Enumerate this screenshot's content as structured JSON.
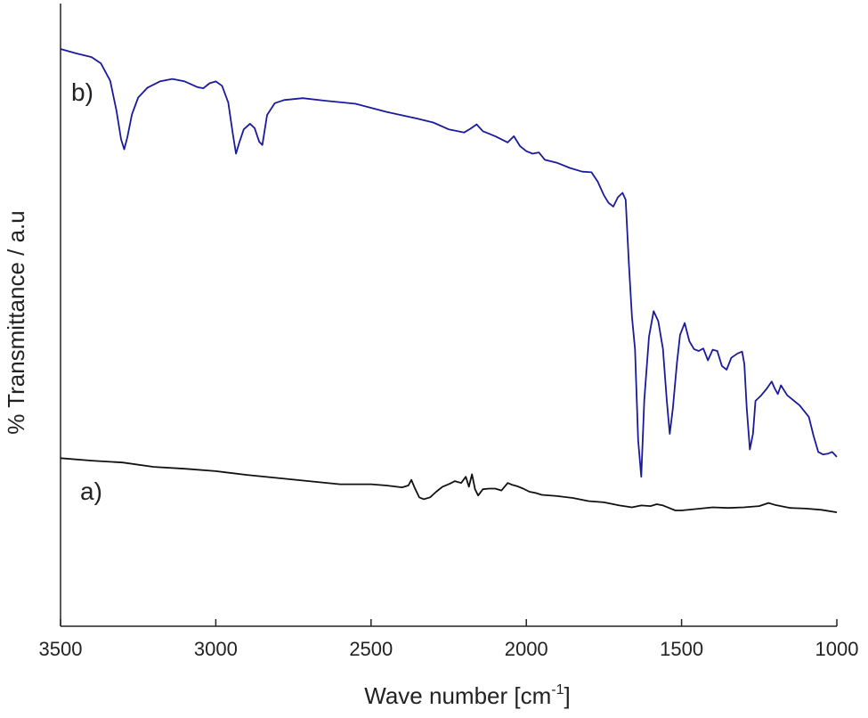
{
  "chart_data": {
    "type": "line",
    "xlabel": "Wave number [cm",
    "xlabel_sup": "-1",
    "xlabel_end": "]",
    "ylabel": "% Transmittance / a.u",
    "xlim": [
      3500,
      1000
    ],
    "x_reversed": true,
    "ylim": [
      0,
      100
    ],
    "x_ticks": [
      3500,
      3000,
      2500,
      2000,
      1500,
      1000
    ],
    "grid": false,
    "series": [
      {
        "name": "b)",
        "color": "#1a1a9c",
        "points": [
          [
            3500,
            92.7
          ],
          [
            3450,
            92.0
          ],
          [
            3400,
            91.4
          ],
          [
            3370,
            90.4
          ],
          [
            3340,
            87.6
          ],
          [
            3320,
            82.8
          ],
          [
            3305,
            78.2
          ],
          [
            3295,
            76.6
          ],
          [
            3285,
            78.5
          ],
          [
            3270,
            82.2
          ],
          [
            3250,
            84.9
          ],
          [
            3220,
            86.5
          ],
          [
            3180,
            87.5
          ],
          [
            3140,
            87.9
          ],
          [
            3100,
            87.5
          ],
          [
            3060,
            86.6
          ],
          [
            3040,
            86.4
          ],
          [
            3020,
            87.2
          ],
          [
            3000,
            87.5
          ],
          [
            2980,
            86.8
          ],
          [
            2960,
            84.1
          ],
          [
            2945,
            79.0
          ],
          [
            2935,
            75.9
          ],
          [
            2925,
            77.6
          ],
          [
            2910,
            79.8
          ],
          [
            2890,
            80.7
          ],
          [
            2875,
            80.0
          ],
          [
            2860,
            77.8
          ],
          [
            2850,
            77.3
          ],
          [
            2835,
            82.1
          ],
          [
            2810,
            84.0
          ],
          [
            2780,
            84.5
          ],
          [
            2720,
            84.8
          ],
          [
            2650,
            84.4
          ],
          [
            2550,
            83.9
          ],
          [
            2450,
            82.6
          ],
          [
            2350,
            81.5
          ],
          [
            2300,
            80.9
          ],
          [
            2250,
            79.8
          ],
          [
            2200,
            79.3
          ],
          [
            2180,
            79.9
          ],
          [
            2160,
            80.6
          ],
          [
            2140,
            79.5
          ],
          [
            2100,
            78.7
          ],
          [
            2060,
            77.7
          ],
          [
            2040,
            78.7
          ],
          [
            2020,
            77.1
          ],
          [
            2000,
            76.3
          ],
          [
            1980,
            75.9
          ],
          [
            1960,
            76.1
          ],
          [
            1940,
            74.9
          ],
          [
            1900,
            74.4
          ],
          [
            1860,
            73.6
          ],
          [
            1820,
            73.0
          ],
          [
            1790,
            72.9
          ],
          [
            1770,
            71.4
          ],
          [
            1750,
            69.2
          ],
          [
            1735,
            68.0
          ],
          [
            1720,
            67.4
          ],
          [
            1705,
            68.9
          ],
          [
            1690,
            69.6
          ],
          [
            1680,
            68.5
          ],
          [
            1670,
            58.5
          ],
          [
            1660,
            49.8
          ],
          [
            1650,
            44.5
          ],
          [
            1640,
            29.9
          ],
          [
            1630,
            24.0
          ],
          [
            1620,
            36.3
          ],
          [
            1605,
            46.5
          ],
          [
            1590,
            50.6
          ],
          [
            1575,
            49.0
          ],
          [
            1560,
            44.5
          ],
          [
            1548,
            36.4
          ],
          [
            1538,
            30.9
          ],
          [
            1528,
            35.0
          ],
          [
            1515,
            42.3
          ],
          [
            1505,
            46.8
          ],
          [
            1490,
            48.7
          ],
          [
            1475,
            45.8
          ],
          [
            1460,
            44.5
          ],
          [
            1445,
            44.2
          ],
          [
            1430,
            44.6
          ],
          [
            1415,
            42.7
          ],
          [
            1400,
            44.4
          ],
          [
            1385,
            44.2
          ],
          [
            1370,
            41.8
          ],
          [
            1355,
            41.2
          ],
          [
            1340,
            43.1
          ],
          [
            1320,
            43.8
          ],
          [
            1305,
            44.1
          ],
          [
            1298,
            42.1
          ],
          [
            1290,
            35.0
          ],
          [
            1280,
            28.4
          ],
          [
            1270,
            30.9
          ],
          [
            1262,
            36.2
          ],
          [
            1245,
            37.0
          ],
          [
            1225,
            38.2
          ],
          [
            1210,
            39.3
          ],
          [
            1200,
            38.2
          ],
          [
            1190,
            37.3
          ],
          [
            1180,
            38.7
          ],
          [
            1160,
            37.1
          ],
          [
            1120,
            35.5
          ],
          [
            1090,
            33.6
          ],
          [
            1075,
            30.6
          ],
          [
            1060,
            28.0
          ],
          [
            1045,
            27.6
          ],
          [
            1030,
            27.7
          ],
          [
            1015,
            28.0
          ],
          [
            1000,
            27.2
          ]
        ]
      },
      {
        "name": "a)",
        "color": "#111111",
        "points": [
          [
            3500,
            27.0
          ],
          [
            3400,
            26.6
          ],
          [
            3300,
            26.3
          ],
          [
            3200,
            25.6
          ],
          [
            3100,
            25.3
          ],
          [
            3000,
            24.9
          ],
          [
            2900,
            24.3
          ],
          [
            2800,
            23.8
          ],
          [
            2700,
            23.3
          ],
          [
            2600,
            22.8
          ],
          [
            2500,
            22.8
          ],
          [
            2450,
            22.6
          ],
          [
            2400,
            22.3
          ],
          [
            2380,
            22.6
          ],
          [
            2370,
            23.5
          ],
          [
            2360,
            22.3
          ],
          [
            2345,
            20.7
          ],
          [
            2330,
            20.4
          ],
          [
            2310,
            20.7
          ],
          [
            2290,
            21.6
          ],
          [
            2270,
            22.4
          ],
          [
            2250,
            22.8
          ],
          [
            2230,
            23.3
          ],
          [
            2210,
            23.0
          ],
          [
            2195,
            24.0
          ],
          [
            2185,
            22.4
          ],
          [
            2175,
            24.4
          ],
          [
            2165,
            22.0
          ],
          [
            2155,
            21.0
          ],
          [
            2140,
            22.0
          ],
          [
            2120,
            22.1
          ],
          [
            2100,
            22.1
          ],
          [
            2080,
            21.8
          ],
          [
            2060,
            23.0
          ],
          [
            2045,
            22.7
          ],
          [
            2030,
            22.5
          ],
          [
            2010,
            22.1
          ],
          [
            1990,
            21.6
          ],
          [
            1970,
            21.4
          ],
          [
            1950,
            21.1
          ],
          [
            1900,
            20.9
          ],
          [
            1850,
            20.6
          ],
          [
            1800,
            20.1
          ],
          [
            1750,
            19.9
          ],
          [
            1700,
            19.4
          ],
          [
            1660,
            19.1
          ],
          [
            1630,
            19.4
          ],
          [
            1600,
            19.3
          ],
          [
            1580,
            19.6
          ],
          [
            1560,
            19.4
          ],
          [
            1540,
            19.0
          ],
          [
            1520,
            18.6
          ],
          [
            1500,
            18.6
          ],
          [
            1460,
            18.8
          ],
          [
            1400,
            19.1
          ],
          [
            1350,
            19.0
          ],
          [
            1300,
            19.1
          ],
          [
            1250,
            19.3
          ],
          [
            1220,
            19.8
          ],
          [
            1200,
            19.5
          ],
          [
            1150,
            19.0
          ],
          [
            1100,
            18.9
          ],
          [
            1050,
            18.7
          ],
          [
            1000,
            18.3
          ]
        ]
      }
    ]
  }
}
